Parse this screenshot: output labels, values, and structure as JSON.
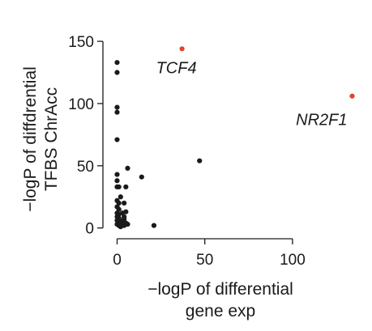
{
  "chart_data": {
    "type": "scatter",
    "title": "",
    "xlabel_line1": "−logP of differential",
    "xlabel_line2": "gene exp",
    "ylabel_line1": "−logP of diffdrential",
    "ylabel_line2": "TFBS ChrAcc",
    "xlim": [
      -3,
      137
    ],
    "ylim": [
      -8,
      152
    ],
    "xticks": [
      0,
      50,
      100
    ],
    "yticks": [
      0,
      50,
      100,
      150
    ],
    "colors": {
      "default": "#1a1a1a",
      "highlight": "#e0442a"
    },
    "points": [
      {
        "x": 0,
        "y": 133
      },
      {
        "x": 0,
        "y": 125
      },
      {
        "x": 0,
        "y": 97
      },
      {
        "x": 0,
        "y": 93
      },
      {
        "x": 0,
        "y": 71
      },
      {
        "x": 0,
        "y": 43
      },
      {
        "x": 0,
        "y": 38
      },
      {
        "x": 0,
        "y": 33
      },
      {
        "x": 1,
        "y": 33
      },
      {
        "x": 0,
        "y": 22
      },
      {
        "x": 1,
        "y": 20
      },
      {
        "x": 0,
        "y": 17
      },
      {
        "x": 1,
        "y": 15
      },
      {
        "x": 0,
        "y": 12
      },
      {
        "x": 1,
        "y": 11
      },
      {
        "x": 0,
        "y": 9
      },
      {
        "x": 1,
        "y": 8
      },
      {
        "x": 0,
        "y": 6
      },
      {
        "x": 1,
        "y": 5
      },
      {
        "x": 2,
        "y": 4
      },
      {
        "x": 0,
        "y": 3
      },
      {
        "x": 1,
        "y": 2
      },
      {
        "x": 2,
        "y": 1
      },
      {
        "x": 3,
        "y": 3
      },
      {
        "x": 4,
        "y": 2
      },
      {
        "x": 3,
        "y": 6
      },
      {
        "x": 4,
        "y": 9
      },
      {
        "x": 5,
        "y": 4
      },
      {
        "x": 3,
        "y": 12
      },
      {
        "x": 5,
        "y": 13
      },
      {
        "x": 4,
        "y": 7
      },
      {
        "x": 6,
        "y": 3
      },
      {
        "x": 4,
        "y": 20
      },
      {
        "x": 2,
        "y": 25
      },
      {
        "x": 5,
        "y": 33
      },
      {
        "x": 6,
        "y": 48
      },
      {
        "x": 14,
        "y": 41
      },
      {
        "x": 21,
        "y": 2
      },
      {
        "x": 47,
        "y": 54
      },
      {
        "x": 37,
        "y": 144,
        "highlight": true,
        "label": "TCF4"
      },
      {
        "x": 134,
        "y": 106,
        "highlight": true,
        "label": "NR2F1"
      }
    ]
  }
}
